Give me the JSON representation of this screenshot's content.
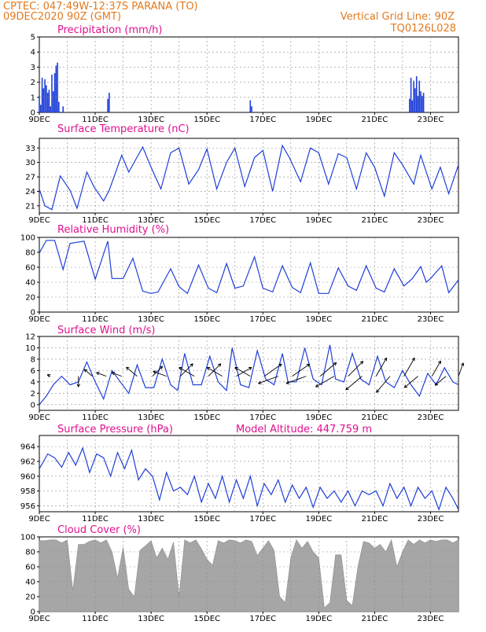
{
  "header": {
    "line1": "CPTEC:   047:49W-12:37S   PARANA (TO)",
    "line2": "09DEC2020 90Z (GMT)",
    "grid_note": "Vertical Grid Line: 90Z",
    "code": "TQ0126L028"
  },
  "colors": {
    "header": "#e07a1f",
    "title": "#e0108f",
    "series": "#1f3fd8",
    "cloud": "#a6a6a6",
    "grid": "#8a8a8a"
  },
  "x_axis": {
    "tick_labels": [
      "9DEC",
      "11DEC",
      "13DEC",
      "15DEC",
      "17DEC",
      "19DEC",
      "21DEC",
      "23DEC"
    ],
    "start_day": 9,
    "end_day": 24
  },
  "chart_data": [
    {
      "type": "bar",
      "title": "Precipitation (mm/h)",
      "ylim": [
        0,
        5
      ],
      "yticks": [
        0,
        1,
        2,
        3,
        4,
        5
      ],
      "x": [
        9.0,
        9.05,
        9.1,
        9.15,
        9.2,
        9.25,
        9.3,
        9.35,
        9.4,
        9.45,
        9.5,
        9.55,
        9.6,
        9.65,
        9.7,
        9.85,
        11.45,
        11.5,
        16.55,
        16.6,
        22.25,
        22.3,
        22.35,
        22.4,
        22.45,
        22.5,
        22.55,
        22.6,
        22.65,
        22.7,
        22.75
      ],
      "values": [
        1.1,
        0.5,
        2.3,
        1.6,
        2.2,
        1.8,
        1.3,
        1.5,
        0.4,
        2.5,
        1.4,
        2.6,
        3.1,
        3.3,
        0.7,
        0.4,
        0.9,
        1.3,
        0.8,
        0.4,
        0.9,
        2.3,
        0.8,
        2.1,
        1.6,
        2.4,
        1.1,
        2.1,
        1.4,
        1.1,
        1.3
      ]
    },
    {
      "type": "line",
      "title": "Surface Temperature (nC)",
      "ylim": [
        19.5,
        35
      ],
      "yticks": [
        21,
        24,
        27,
        30,
        33
      ],
      "x": [
        9.0,
        9.2,
        9.45,
        9.75,
        10.1,
        10.35,
        10.7,
        10.95,
        11.3,
        11.5,
        11.95,
        12.2,
        12.7,
        13.0,
        13.35,
        13.7,
        14.0,
        14.35,
        14.7,
        15.0,
        15.35,
        15.7,
        16.0,
        16.35,
        16.7,
        17.0,
        17.35,
        17.7,
        17.95,
        18.35,
        18.7,
        19.0,
        19.35,
        19.7,
        20.0,
        20.35,
        20.7,
        21.0,
        21.35,
        21.7,
        22.0,
        22.4,
        22.65,
        23.05,
        23.35,
        23.65,
        24.0
      ],
      "series": [
        {
          "values": [
            24.5,
            21.0,
            20.2,
            27.2,
            24.2,
            20.5,
            28.0,
            25.0,
            22.0,
            24.2,
            31.5,
            28.0,
            33.2,
            29.0,
            24.5,
            32.0,
            33.0,
            25.5,
            28.5,
            32.8,
            24.5,
            30.0,
            33.0,
            25.0,
            31.0,
            32.5,
            24.0,
            33.5,
            31.0,
            26.0,
            33.0,
            32.0,
            25.5,
            31.8,
            31.0,
            24.5,
            32.0,
            29.0,
            23.0,
            32.0,
            29.5,
            25.5,
            31.5,
            24.5,
            29.0,
            23.5,
            29.5
          ]
        }
      ]
    },
    {
      "type": "line",
      "title": "Relative Humidity (%)",
      "ylim": [
        0,
        100
      ],
      "yticks": [
        0,
        20,
        40,
        60,
        80,
        100
      ],
      "x": [
        9.0,
        9.25,
        9.55,
        9.85,
        10.1,
        10.6,
        11.0,
        11.45,
        11.6,
        12.0,
        12.35,
        12.7,
        13.0,
        13.25,
        13.7,
        14.0,
        14.3,
        14.7,
        15.05,
        15.35,
        15.7,
        16.0,
        16.3,
        16.7,
        17.0,
        17.35,
        17.7,
        18.05,
        18.35,
        18.7,
        19.0,
        19.35,
        19.7,
        20.05,
        20.35,
        20.7,
        21.05,
        21.35,
        21.7,
        22.05,
        22.35,
        22.65,
        22.85,
        23.0,
        23.4,
        23.65,
        24.0
      ],
      "series": [
        {
          "values": [
            79,
            96,
            96,
            57,
            92,
            95,
            44,
            95,
            45,
            45,
            72,
            28,
            25,
            27,
            58,
            34,
            25,
            63,
            32,
            26,
            65,
            32,
            35,
            74,
            32,
            27,
            62,
            33,
            26,
            66,
            25,
            25,
            59,
            35,
            29,
            62,
            32,
            27,
            58,
            35,
            45,
            61,
            40,
            45,
            62,
            26,
            43
          ]
        }
      ]
    },
    {
      "type": "line",
      "title": "Surface Wind (m/s)",
      "ylim": [
        -1,
        12
      ],
      "yticks": [
        0,
        2,
        4,
        6,
        8,
        10,
        12
      ],
      "x": [
        9.0,
        9.25,
        9.5,
        9.8,
        10.1,
        10.4,
        10.7,
        11.0,
        11.3,
        11.6,
        11.9,
        12.2,
        12.5,
        12.8,
        13.1,
        13.4,
        13.7,
        13.95,
        14.2,
        14.5,
        14.8,
        15.1,
        15.4,
        15.7,
        15.9,
        16.2,
        16.5,
        16.8,
        17.1,
        17.4,
        17.7,
        17.9,
        18.2,
        18.5,
        18.8,
        19.1,
        19.4,
        19.6,
        19.9,
        20.2,
        20.5,
        20.8,
        21.1,
        21.4,
        21.7,
        22.0,
        22.3,
        22.6,
        22.9,
        23.2,
        23.5,
        23.8,
        24.0
      ],
      "series": [
        {
          "values": [
            0,
            1.5,
            3.5,
            5.0,
            3.5,
            4.0,
            7.5,
            4.0,
            1.0,
            6.0,
            4.0,
            2.0,
            7.0,
            3.0,
            3.0,
            8.0,
            3.5,
            2.5,
            9.0,
            3.5,
            3.5,
            8.5,
            4.0,
            2.5,
            10.0,
            3.5,
            3.0,
            9.5,
            4.5,
            3.5,
            9.0,
            4.0,
            4.0,
            10.0,
            4.5,
            3.5,
            10.5,
            4.5,
            4.0,
            9.0,
            4.5,
            3.5,
            8.5,
            4.0,
            3.0,
            6.0,
            3.5,
            1.5,
            5.5,
            3.5,
            6.5,
            4.0,
            3.5
          ]
        }
      ],
      "vectors": {
        "x": [
          9.4,
          10.4,
          10.9,
          11.4,
          11.95,
          12.5,
          13.05,
          13.55,
          14.05,
          14.55,
          15.05,
          15.55,
          16.05,
          16.55,
          17.05,
          17.55,
          18.05,
          18.55,
          19.05,
          19.55,
          20.05,
          20.55,
          21.05,
          21.55,
          22.05,
          22.55,
          23.05,
          23.55,
          24.0
        ],
        "dir_deg": [
          155,
          270,
          140,
          160,
          160,
          140,
          45,
          160,
          45,
          150,
          45,
          150,
          30,
          150,
          35,
          200,
          35,
          200,
          40,
          210,
          45,
          220,
          60,
          230,
          60,
          220,
          60,
          220,
          70
        ],
        "speed": [
          0.5,
          1.5,
          1.5,
          1.5,
          1.5,
          2.0,
          2.0,
          2.0,
          2.5,
          2.5,
          2.5,
          2.5,
          2.5,
          2.5,
          3.0,
          3.0,
          3.0,
          3.0,
          3.0,
          3.0,
          3.0,
          3.0,
          3.0,
          3.0,
          3.0,
          2.5,
          2.5,
          2.0,
          2.0
        ]
      }
    },
    {
      "type": "line",
      "title": "Surface Pressure (hPa)",
      "annotation": "Model Altitude: 447.759  m",
      "ylim": [
        955.2,
        965.5
      ],
      "yticks": [
        956,
        958,
        960,
        962,
        964
      ],
      "x": [
        9.0,
        9.3,
        9.55,
        9.8,
        10.05,
        10.3,
        10.55,
        10.8,
        11.05,
        11.3,
        11.55,
        11.8,
        12.05,
        12.3,
        12.55,
        12.8,
        13.05,
        13.3,
        13.55,
        13.8,
        14.05,
        14.3,
        14.55,
        14.8,
        15.05,
        15.3,
        15.55,
        15.8,
        16.05,
        16.3,
        16.55,
        16.8,
        17.05,
        17.3,
        17.55,
        17.8,
        18.05,
        18.3,
        18.55,
        18.8,
        19.05,
        19.3,
        19.55,
        19.8,
        20.05,
        20.3,
        20.55,
        20.8,
        21.05,
        21.3,
        21.55,
        21.8,
        22.05,
        22.3,
        22.55,
        22.8,
        23.05,
        23.3,
        23.55,
        23.8,
        24.0
      ],
      "series": [
        {
          "values": [
            961.0,
            963.0,
            962.5,
            961.2,
            963.2,
            961.5,
            963.8,
            960.5,
            963.0,
            962.5,
            960.0,
            963.2,
            961.0,
            963.5,
            959.5,
            961.0,
            960.0,
            956.8,
            960.5,
            958.0,
            958.5,
            957.5,
            960.0,
            956.5,
            959.0,
            957.0,
            960.0,
            956.5,
            959.5,
            957.0,
            960.0,
            956.0,
            959.0,
            957.5,
            959.5,
            956.5,
            958.8,
            957.0,
            958.5,
            955.8,
            958.5,
            957.0,
            958.0,
            956.5,
            958.0,
            956.0,
            958.0,
            957.5,
            958.0,
            956.0,
            959.0,
            957.0,
            958.5,
            956.0,
            958.5,
            957.0,
            958.0,
            955.5,
            958.5,
            957.0,
            955.5
          ]
        }
      ]
    },
    {
      "type": "area",
      "title": "Cloud Cover (%)",
      "ylim": [
        0,
        100
      ],
      "yticks": [
        0,
        20,
        40,
        60,
        80,
        100
      ],
      "x": [
        9.0,
        9.2,
        9.4,
        9.6,
        9.8,
        10.0,
        10.2,
        10.4,
        10.6,
        10.8,
        11.0,
        11.2,
        11.4,
        11.6,
        11.8,
        12.0,
        12.2,
        12.4,
        12.6,
        12.8,
        13.0,
        13.2,
        13.4,
        13.6,
        13.8,
        14.0,
        14.2,
        14.4,
        14.6,
        14.8,
        15.0,
        15.2,
        15.4,
        15.6,
        15.8,
        16.0,
        16.2,
        16.4,
        16.6,
        16.8,
        17.0,
        17.2,
        17.4,
        17.6,
        17.8,
        18.0,
        18.2,
        18.4,
        18.6,
        18.8,
        19.0,
        19.2,
        19.4,
        19.6,
        19.8,
        20.0,
        20.2,
        20.4,
        20.6,
        20.8,
        21.0,
        21.2,
        21.4,
        21.6,
        21.8,
        22.0,
        22.2,
        22.4,
        22.6,
        22.8,
        23.0,
        23.2,
        23.4,
        23.6,
        23.8,
        24.0
      ],
      "values": [
        95,
        95,
        96,
        96,
        92,
        96,
        28,
        90,
        90,
        94,
        96,
        92,
        96,
        80,
        45,
        86,
        30,
        20,
        82,
        88,
        95,
        72,
        85,
        70,
        93,
        20,
        96,
        92,
        96,
        84,
        70,
        62,
        95,
        92,
        96,
        95,
        92,
        96,
        94,
        75,
        85,
        95,
        82,
        20,
        12,
        72,
        96,
        85,
        94,
        80,
        72,
        5,
        12,
        76,
        76,
        15,
        8,
        60,
        94,
        92,
        85,
        90,
        80,
        96,
        60,
        80,
        96,
        90,
        96,
        92,
        96,
        94,
        96,
        96,
        92,
        96
      ]
    }
  ]
}
